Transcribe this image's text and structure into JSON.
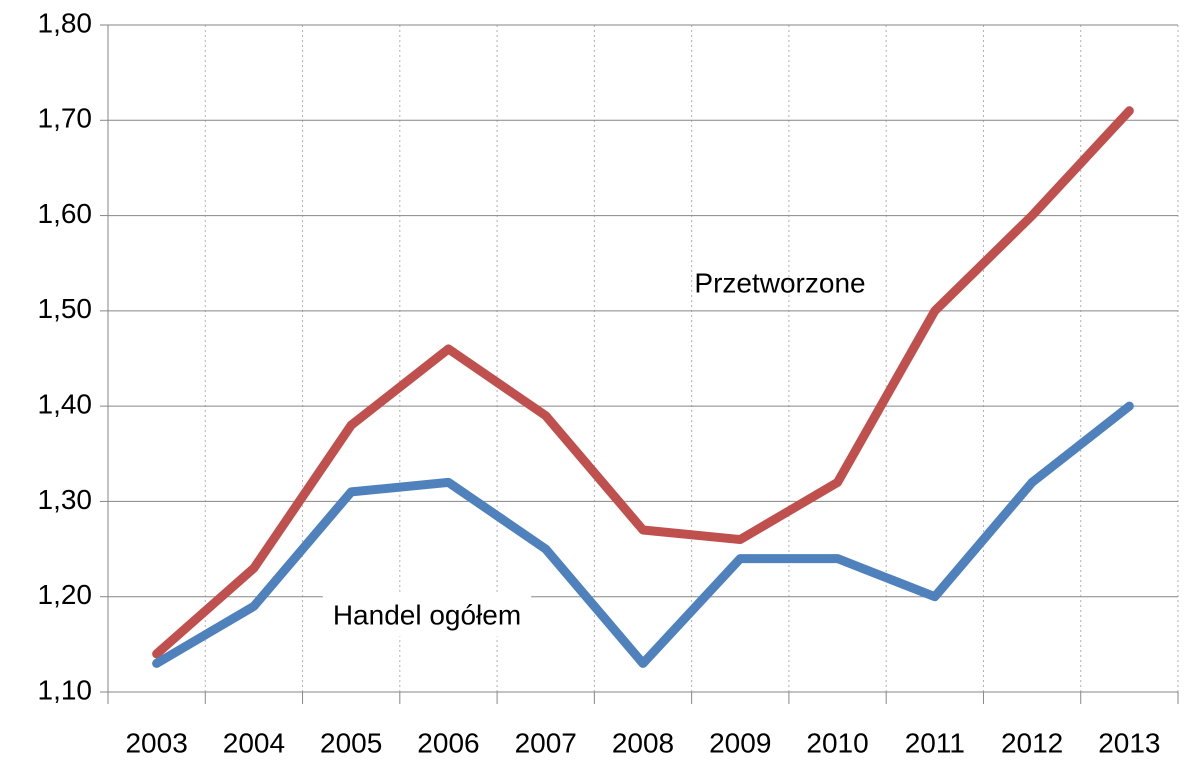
{
  "chart_data": {
    "type": "line",
    "categories": [
      "2003",
      "2004",
      "2005",
      "2006",
      "2007",
      "2008",
      "2009",
      "2010",
      "2011",
      "2012",
      "2013"
    ],
    "series": [
      {
        "name": "Przetworzone",
        "color": "#c0504d",
        "values": [
          1.14,
          1.23,
          1.38,
          1.46,
          1.39,
          1.27,
          1.26,
          1.32,
          1.5,
          1.6,
          1.71
        ]
      },
      {
        "name": "Handel ogółem",
        "color": "#4f81bd",
        "values": [
          1.13,
          1.19,
          1.31,
          1.32,
          1.25,
          1.13,
          1.24,
          1.24,
          1.2,
          1.32,
          1.4
        ]
      }
    ],
    "ylim": [
      1.1,
      1.8
    ],
    "yticks": [
      {
        "value": 1.1,
        "label": "1,10"
      },
      {
        "value": 1.2,
        "label": "1,20"
      },
      {
        "value": 1.3,
        "label": "1,30"
      },
      {
        "value": 1.4,
        "label": "1,40"
      },
      {
        "value": 1.5,
        "label": "1,50"
      },
      {
        "value": 1.6,
        "label": "1,60"
      },
      {
        "value": 1.7,
        "label": "1,70"
      },
      {
        "value": 1.8,
        "label": "1,80"
      }
    ],
    "grid": true
  }
}
